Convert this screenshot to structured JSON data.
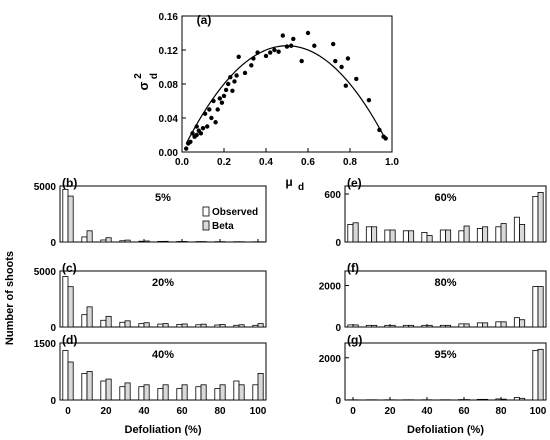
{
  "chart_data": [
    {
      "panel": "(a)",
      "type": "scatter",
      "xlabel": "μ",
      "xlabel_sub": "d",
      "ylabel": "σ",
      "ylabel_sup": "2",
      "ylabel_sub": "d",
      "xlim": [
        0,
        1
      ],
      "ylim": [
        0,
        0.16
      ],
      "xticks": [
        "0.0",
        "0.2",
        "0.4",
        "0.6",
        "0.8",
        "1.0"
      ],
      "yticks": [
        "0.00",
        "0.04",
        "0.08",
        "0.12",
        "0.16"
      ],
      "points": [
        [
          0.02,
          0.004
        ],
        [
          0.03,
          0.01
        ],
        [
          0.04,
          0.012
        ],
        [
          0.05,
          0.022
        ],
        [
          0.06,
          0.018
        ],
        [
          0.07,
          0.02
        ],
        [
          0.07,
          0.03
        ],
        [
          0.08,
          0.025
        ],
        [
          0.09,
          0.022
        ],
        [
          0.1,
          0.028
        ],
        [
          0.11,
          0.045
        ],
        [
          0.12,
          0.03
        ],
        [
          0.13,
          0.05
        ],
        [
          0.14,
          0.04
        ],
        [
          0.15,
          0.06
        ],
        [
          0.16,
          0.035
        ],
        [
          0.17,
          0.05
        ],
        [
          0.18,
          0.063
        ],
        [
          0.19,
          0.058
        ],
        [
          0.2,
          0.066
        ],
        [
          0.21,
          0.073
        ],
        [
          0.22,
          0.08
        ],
        [
          0.23,
          0.088
        ],
        [
          0.24,
          0.072
        ],
        [
          0.25,
          0.083
        ],
        [
          0.26,
          0.09
        ],
        [
          0.27,
          0.112
        ],
        [
          0.3,
          0.093
        ],
        [
          0.33,
          0.102
        ],
        [
          0.34,
          0.11
        ],
        [
          0.36,
          0.117
        ],
        [
          0.4,
          0.113
        ],
        [
          0.42,
          0.117
        ],
        [
          0.44,
          0.12
        ],
        [
          0.46,
          0.118
        ],
        [
          0.48,
          0.137
        ],
        [
          0.5,
          0.124
        ],
        [
          0.52,
          0.125
        ],
        [
          0.53,
          0.133
        ],
        [
          0.57,
          0.107
        ],
        [
          0.6,
          0.14
        ],
        [
          0.63,
          0.125
        ],
        [
          0.72,
          0.127
        ],
        [
          0.73,
          0.107
        ],
        [
          0.76,
          0.1
        ],
        [
          0.78,
          0.078
        ],
        [
          0.79,
          0.11
        ],
        [
          0.83,
          0.086
        ],
        [
          0.89,
          0.061
        ],
        [
          0.94,
          0.026
        ],
        [
          0.96,
          0.018
        ],
        [
          0.97,
          0.016
        ]
      ],
      "curve": "x(1-x)/2"
    },
    {
      "panel": "(b)",
      "label": "5%",
      "type": "bar",
      "categories": [
        0,
        10,
        20,
        30,
        40,
        50,
        60,
        70,
        80,
        90,
        100
      ],
      "yticks": [
        "0",
        "5000"
      ],
      "ylim": [
        0,
        5000
      ],
      "show_xticks": false,
      "legend": [
        "Observed",
        "Beta"
      ],
      "series": [
        {
          "name": "Observed",
          "values": [
            4700,
            450,
            180,
            110,
            70,
            55,
            45,
            35,
            30,
            25,
            20
          ]
        },
        {
          "name": "Beta",
          "values": [
            4100,
            1000,
            380,
            170,
            90,
            60,
            45,
            35,
            30,
            25,
            20
          ]
        }
      ]
    },
    {
      "panel": "(c)",
      "label": "20%",
      "type": "bar",
      "categories": [
        0,
        10,
        20,
        30,
        40,
        50,
        60,
        70,
        80,
        90,
        100
      ],
      "yticks": [
        "0",
        "5000"
      ],
      "ylim": [
        0,
        5000
      ],
      "show_xticks": false,
      "series": [
        {
          "name": "Observed",
          "values": [
            4500,
            1100,
            600,
            420,
            300,
            260,
            230,
            200,
            180,
            150,
            150
          ]
        },
        {
          "name": "Beta",
          "values": [
            3600,
            1800,
            950,
            550,
            380,
            300,
            270,
            250,
            220,
            200,
            300
          ]
        }
      ]
    },
    {
      "panel": "(d)",
      "label": "40%",
      "type": "bar",
      "categories": [
        0,
        10,
        20,
        30,
        40,
        50,
        60,
        70,
        80,
        90,
        100
      ],
      "yticks": [
        "0",
        "1500"
      ],
      "ylim": [
        0,
        1500
      ],
      "show_xticks": true,
      "xticks": [
        "0",
        "20",
        "40",
        "60",
        "80",
        "100"
      ],
      "xlabel": "Defoliation (%)",
      "series": [
        {
          "name": "Observed",
          "values": [
            1300,
            700,
            500,
            350,
            350,
            300,
            300,
            350,
            300,
            500,
            400
          ]
        },
        {
          "name": "Beta",
          "values": [
            1000,
            750,
            550,
            450,
            400,
            400,
            400,
            400,
            400,
            400,
            700
          ]
        }
      ]
    },
    {
      "panel": "(e)",
      "label": "60%",
      "type": "bar",
      "categories": [
        0,
        10,
        20,
        30,
        40,
        50,
        60,
        70,
        80,
        90,
        100
      ],
      "yticks": [
        "0",
        "600"
      ],
      "ylim": [
        0,
        700
      ],
      "show_xticks": false,
      "series": [
        {
          "name": "Observed",
          "values": [
            220,
            190,
            150,
            140,
            120,
            150,
            140,
            170,
            190,
            310,
            570
          ]
        },
        {
          "name": "Beta",
          "values": [
            240,
            190,
            150,
            140,
            80,
            150,
            200,
            190,
            230,
            220,
            620
          ]
        }
      ]
    },
    {
      "panel": "(f)",
      "label": "80%",
      "type": "bar",
      "categories": [
        0,
        10,
        20,
        30,
        40,
        50,
        60,
        70,
        80,
        90,
        100
      ],
      "yticks": [
        "0",
        "2000"
      ],
      "ylim": [
        0,
        2700
      ],
      "show_xticks": false,
      "series": [
        {
          "name": "Observed",
          "values": [
            100,
            80,
            80,
            80,
            80,
            80,
            150,
            200,
            250,
            450,
            1950
          ]
        },
        {
          "name": "Beta",
          "values": [
            100,
            80,
            80,
            80,
            80,
            80,
            150,
            200,
            250,
            350,
            1950
          ]
        }
      ]
    },
    {
      "panel": "(g)",
      "label": "95%",
      "type": "bar",
      "categories": [
        0,
        10,
        20,
        30,
        40,
        50,
        60,
        70,
        80,
        90,
        100
      ],
      "yticks": [
        "0",
        "2000"
      ],
      "ylim": [
        0,
        2700
      ],
      "show_xticks": true,
      "xticks": [
        "0",
        "20",
        "40",
        "60",
        "80",
        "100"
      ],
      "xlabel": "Defoliation (%)",
      "series": [
        {
          "name": "Observed",
          "values": [
            10,
            10,
            10,
            10,
            10,
            10,
            20,
            30,
            50,
            120,
            2350
          ]
        },
        {
          "name": "Beta",
          "values": [
            10,
            10,
            10,
            10,
            10,
            10,
            20,
            30,
            40,
            80,
            2400
          ]
        }
      ]
    }
  ],
  "shared_ylabel": "Number of shoots",
  "colors": {
    "observed": "#ffffff",
    "beta": "#d9d9d9",
    "line": "#000000"
  }
}
